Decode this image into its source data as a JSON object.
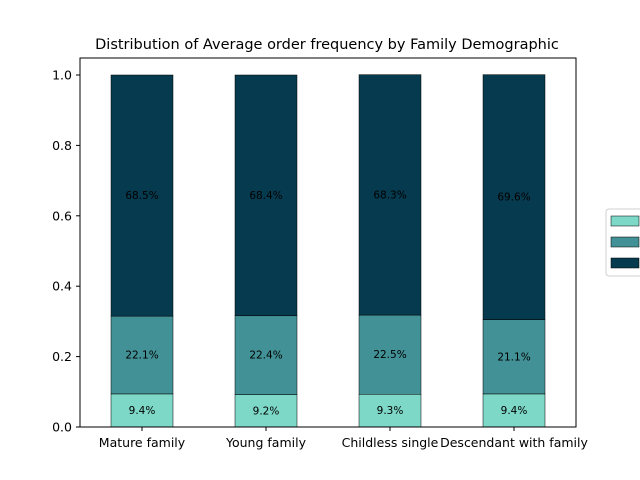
{
  "chart_data": {
    "type": "bar",
    "stacked": true,
    "title": "Distribution of Average order frequency by Family Demographic",
    "xlabel": "",
    "ylabel": "",
    "categories": [
      "Mature family",
      "Young family",
      "Childless single",
      "Descendant with family"
    ],
    "ylim": [
      0,
      1.0
    ],
    "yticks": [
      "0.0",
      "0.2",
      "0.4",
      "0.6",
      "0.8",
      "1.0"
    ],
    "legend_position": "right",
    "grid": false,
    "series": [
      {
        "color": "#7dd8c8",
        "values": [
          0.094,
          0.092,
          0.093,
          0.094
        ],
        "labels": [
          "9.4%",
          "9.2%",
          "9.3%",
          "9.4%"
        ]
      },
      {
        "color": "#429196",
        "values": [
          0.221,
          0.224,
          0.225,
          0.211
        ],
        "labels": [
          "22.1%",
          "22.4%",
          "22.5%",
          "21.1%"
        ]
      },
      {
        "color": "#063a4f",
        "values": [
          0.685,
          0.684,
          0.683,
          0.696
        ],
        "labels": [
          "68.5%",
          "68.4%",
          "68.3%",
          "69.6%"
        ]
      }
    ]
  }
}
